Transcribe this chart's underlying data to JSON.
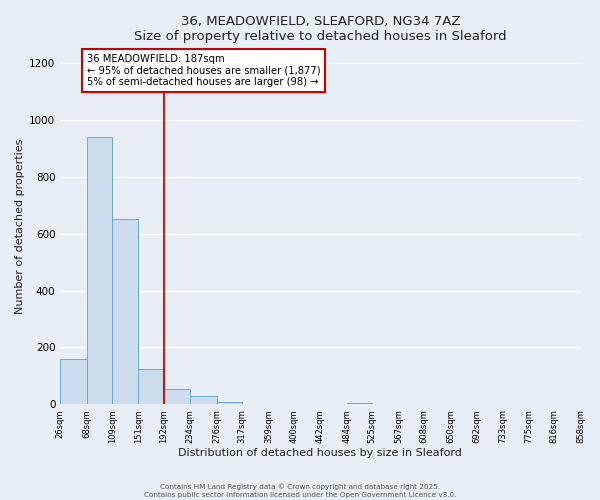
{
  "title": "36, MEADOWFIELD, SLEAFORD, NG34 7AZ",
  "subtitle": "Size of property relative to detached houses in Sleaford",
  "xlabel": "Distribution of detached houses by size in Sleaford",
  "ylabel": "Number of detached properties",
  "bin_edges": [
    26,
    68,
    109,
    151,
    192,
    234,
    276,
    317,
    359,
    400,
    442,
    484,
    525,
    567,
    608,
    650,
    692,
    733,
    775,
    816,
    858
  ],
  "counts": [
    160,
    940,
    650,
    125,
    55,
    28,
    10,
    0,
    0,
    0,
    0,
    5,
    0,
    0,
    0,
    0,
    0,
    0,
    0,
    0
  ],
  "bar_color": "#cddcec",
  "bar_edge_color": "#6aaad4",
  "vline_x": 192,
  "vline_color": "#cc0000",
  "annotation_text_line1": "36 MEADOWFIELD: 187sqm",
  "annotation_text_line2": "← 95% of detached houses are smaller (1,877)",
  "annotation_text_line3": "5% of semi-detached houses are larger (98) →",
  "annotation_box_color": "#ffffff",
  "annotation_box_edge_color": "#cc0000",
  "ylim": [
    0,
    1250
  ],
  "xlim": [
    26,
    858
  ],
  "tick_labels": [
    "26sqm",
    "68sqm",
    "109sqm",
    "151sqm",
    "192sqm",
    "234sqm",
    "276sqm",
    "317sqm",
    "359sqm",
    "400sqm",
    "442sqm",
    "484sqm",
    "525sqm",
    "567sqm",
    "608sqm",
    "650sqm",
    "692sqm",
    "733sqm",
    "775sqm",
    "816sqm",
    "858sqm"
  ],
  "background_color": "#e8eef5",
  "grid_color": "#ffffff",
  "footer_line1": "Contains HM Land Registry data © Crown copyright and database right 2025.",
  "footer_line2": "Contains public sector information licensed under the Open Government Licence v3.0."
}
